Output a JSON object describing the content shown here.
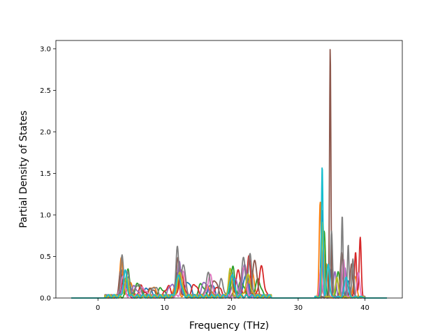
{
  "chart_data": {
    "type": "line",
    "title": "",
    "xlabel": "Frequency (THz)",
    "ylabel": "Partial Density of States",
    "xlim": [
      -6.3,
      45.6
    ],
    "ylim": [
      0,
      3.1
    ],
    "xticks": [
      0,
      10,
      20,
      30,
      40
    ],
    "xtick_labels": [
      "0",
      "10",
      "20",
      "30",
      "40"
    ],
    "yticks": [
      0.0,
      0.5,
      1.0,
      1.5,
      2.0,
      2.5,
      3.0
    ],
    "ytick_labels": [
      "0.0",
      "0.5",
      "1.0",
      "1.5",
      "2.0",
      "2.5",
      "3.0"
    ],
    "grid": false,
    "legend": "none",
    "x_range": [
      -4.0,
      43.3
    ],
    "series": [
      {
        "color": "#1f77b4",
        "peaks": [
          [
            3.6,
            0.3,
            0.25
          ],
          [
            4.6,
            0.22,
            0.3
          ],
          [
            7.5,
            0.1,
            0.5
          ],
          [
            12.0,
            0.3,
            0.35
          ],
          [
            13.5,
            0.18,
            0.4
          ],
          [
            17.0,
            0.15,
            0.4
          ],
          [
            20.0,
            0.3,
            0.3
          ],
          [
            22.2,
            0.28,
            0.35
          ],
          [
            33.6,
            1.05,
            0.18
          ],
          [
            35.0,
            0.35,
            0.2
          ],
          [
            37.5,
            0.2,
            0.25
          ]
        ]
      },
      {
        "color": "#ff7f0e",
        "peaks": [
          [
            3.5,
            0.45,
            0.22
          ],
          [
            4.8,
            0.18,
            0.3
          ],
          [
            8.2,
            0.12,
            0.4
          ],
          [
            11.8,
            0.25,
            0.3
          ],
          [
            16.5,
            0.12,
            0.4
          ],
          [
            19.9,
            0.25,
            0.3
          ],
          [
            23.0,
            0.3,
            0.4
          ],
          [
            33.3,
            1.15,
            0.15
          ],
          [
            34.2,
            0.4,
            0.2
          ],
          [
            38.5,
            0.25,
            0.25
          ]
        ]
      },
      {
        "color": "#2ca02c",
        "peaks": [
          [
            4.5,
            0.35,
            0.22
          ],
          [
            6.0,
            0.15,
            0.4
          ],
          [
            9.5,
            0.1,
            0.4
          ],
          [
            12.3,
            0.22,
            0.35
          ],
          [
            15.5,
            0.15,
            0.4
          ],
          [
            20.2,
            0.36,
            0.25
          ],
          [
            21.5,
            0.18,
            0.4
          ],
          [
            24.0,
            0.2,
            0.4
          ],
          [
            33.9,
            0.8,
            0.18
          ],
          [
            36.0,
            0.3,
            0.25
          ]
        ]
      },
      {
        "color": "#d62728",
        "peaks": [
          [
            3.8,
            0.18,
            0.3
          ],
          [
            6.5,
            0.12,
            0.4
          ],
          [
            10.5,
            0.12,
            0.4
          ],
          [
            12.5,
            0.3,
            0.35
          ],
          [
            14.5,
            0.15,
            0.4
          ],
          [
            18.0,
            0.12,
            0.4
          ],
          [
            21.0,
            0.3,
            0.35
          ],
          [
            22.6,
            0.48,
            0.25
          ],
          [
            24.5,
            0.35,
            0.35
          ],
          [
            33.5,
            0.2,
            0.2
          ],
          [
            38.6,
            0.55,
            0.15
          ],
          [
            39.3,
            0.72,
            0.15
          ]
        ]
      },
      {
        "color": "#9467bd",
        "peaks": [
          [
            4.0,
            0.2,
            0.3
          ],
          [
            5.5,
            0.12,
            0.4
          ],
          [
            11.0,
            0.15,
            0.4
          ],
          [
            12.2,
            0.4,
            0.25
          ],
          [
            16.0,
            0.18,
            0.4
          ],
          [
            20.5,
            0.22,
            0.35
          ],
          [
            22.0,
            0.4,
            0.3
          ],
          [
            33.8,
            0.6,
            0.15
          ],
          [
            35.5,
            0.3,
            0.2
          ],
          [
            37.0,
            0.35,
            0.2
          ]
        ]
      },
      {
        "color": "#8c564b",
        "peaks": [
          [
            3.4,
            0.28,
            0.25
          ],
          [
            4.2,
            0.2,
            0.3
          ],
          [
            8.0,
            0.1,
            0.4
          ],
          [
            12.0,
            0.45,
            0.25
          ],
          [
            17.5,
            0.2,
            0.4
          ],
          [
            20.0,
            0.2,
            0.3
          ],
          [
            23.5,
            0.45,
            0.3
          ],
          [
            34.8,
            3.02,
            0.1
          ],
          [
            36.5,
            0.55,
            0.18
          ],
          [
            38.0,
            0.4,
            0.2
          ]
        ]
      },
      {
        "color": "#e377c2",
        "peaks": [
          [
            3.7,
            0.25,
            0.3
          ],
          [
            6.8,
            0.1,
            0.4
          ],
          [
            12.8,
            0.3,
            0.3
          ],
          [
            16.8,
            0.25,
            0.35
          ],
          [
            21.8,
            0.35,
            0.35
          ],
          [
            33.4,
            0.35,
            0.2
          ],
          [
            36.8,
            0.45,
            0.2
          ],
          [
            39.0,
            0.3,
            0.2
          ]
        ]
      },
      {
        "color": "#7f7f7f",
        "peaks": [
          [
            3.6,
            0.48,
            0.2
          ],
          [
            4.4,
            0.3,
            0.3
          ],
          [
            6.0,
            0.15,
            0.4
          ],
          [
            8.5,
            0.12,
            0.4
          ],
          [
            11.9,
            0.62,
            0.2
          ],
          [
            12.8,
            0.4,
            0.3
          ],
          [
            16.5,
            0.28,
            0.3
          ],
          [
            18.5,
            0.2,
            0.3
          ],
          [
            21.8,
            0.45,
            0.3
          ],
          [
            22.8,
            0.5,
            0.25
          ],
          [
            35.0,
            0.8,
            0.15
          ],
          [
            36.6,
            0.98,
            0.12
          ],
          [
            37.5,
            0.63,
            0.12
          ],
          [
            38.2,
            0.45,
            0.15
          ]
        ]
      },
      {
        "color": "#bcbd22",
        "peaks": [
          [
            4.3,
            0.22,
            0.3
          ],
          [
            12.3,
            0.28,
            0.35
          ],
          [
            19.8,
            0.32,
            0.25
          ],
          [
            22.5,
            0.25,
            0.35
          ],
          [
            33.7,
            0.9,
            0.15
          ],
          [
            35.8,
            0.25,
            0.2
          ]
        ]
      },
      {
        "color": "#17becf",
        "peaks": [
          [
            4.1,
            0.3,
            0.25
          ],
          [
            12.1,
            0.25,
            0.35
          ],
          [
            20.1,
            0.28,
            0.3
          ],
          [
            33.6,
            1.58,
            0.12
          ],
          [
            34.5,
            0.4,
            0.2
          ],
          [
            37.2,
            0.25,
            0.25
          ]
        ]
      }
    ]
  }
}
